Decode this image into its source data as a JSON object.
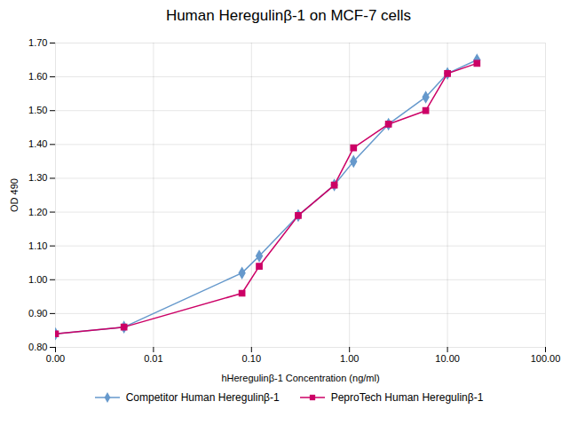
{
  "chart_data": {
    "type": "line",
    "title": "Human Heregulinβ-1 on MCF-7 cells",
    "xlabel": "hHeregulinβ-1 Concentration (ng/ml)",
    "ylabel": "OD 490",
    "x": [
      0.001,
      0.005,
      0.08,
      0.12,
      0.3,
      0.7,
      1.1,
      2.5,
      6.0,
      10.0,
      20.0
    ],
    "series": [
      {
        "name": "Competitor Human Heregulinβ-1",
        "color": "#6699CC",
        "marker": "diamond",
        "line_style": "solid",
        "values": [
          0.84,
          0.86,
          1.02,
          1.07,
          1.19,
          1.28,
          1.35,
          1.46,
          1.54,
          1.61,
          1.65
        ]
      },
      {
        "name": "PeproTech Human Heregulinβ-1",
        "color": "#CC0066",
        "marker": "square",
        "line_style": "solid",
        "values": [
          0.84,
          0.86,
          0.96,
          1.04,
          1.19,
          1.28,
          1.39,
          1.46,
          1.5,
          1.61,
          1.64
        ]
      }
    ],
    "log": "x",
    "xlim": [
      0.001,
      100
    ],
    "xticks": [
      {
        "value": 0.001,
        "label": "0.00"
      },
      {
        "value": 0.01,
        "label": "0.01"
      },
      {
        "value": 0.1,
        "label": "0.10"
      },
      {
        "value": 1,
        "label": "1.00"
      },
      {
        "value": 10,
        "label": "10.00"
      },
      {
        "value": 100,
        "label": "100.00"
      }
    ],
    "ylim": [
      0.8,
      1.7
    ],
    "yticks": [
      {
        "value": 0.8,
        "label": "0.80"
      },
      {
        "value": 0.9,
        "label": "0.90"
      },
      {
        "value": 1.0,
        "label": "1.00"
      },
      {
        "value": 1.1,
        "label": "1.10"
      },
      {
        "value": 1.2,
        "label": "1.20"
      },
      {
        "value": 1.3,
        "label": "1.30"
      },
      {
        "value": 1.4,
        "label": "1.40"
      },
      {
        "value": 1.5,
        "label": "1.50"
      },
      {
        "value": 1.6,
        "label": "1.60"
      },
      {
        "value": 1.7,
        "label": "1.70"
      }
    ],
    "grid": true,
    "legend": "bottom"
  }
}
